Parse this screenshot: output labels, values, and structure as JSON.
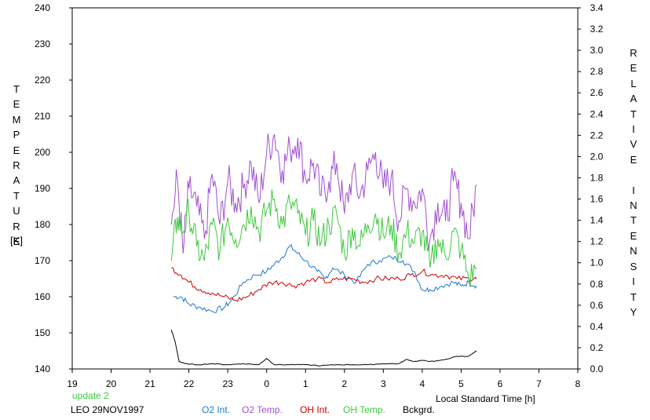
{
  "chart_data": {
    "type": "line",
    "y_left_label_letters": [
      "T",
      "E",
      "M",
      "P",
      "E",
      "R",
      "A",
      "T",
      "U",
      "R",
      "E"
    ],
    "y_left_unit": "[K]",
    "y_right_label_letters": [
      "R",
      "E",
      "L",
      "A",
      "T",
      "I",
      "V",
      "E",
      "",
      "I",
      "N",
      "T",
      "E",
      "N",
      "S",
      "I",
      "T",
      "Y"
    ],
    "xlabel": "Local Standard Time [h]",
    "x_ticks": [
      "19",
      "20",
      "21",
      "22",
      "23",
      "0",
      "1",
      "2",
      "3",
      "4",
      "5",
      "6",
      "7",
      "8"
    ],
    "xlim": [
      19,
      32
    ],
    "y_left_ticks": [
      "140",
      "150",
      "160",
      "170",
      "180",
      "190",
      "200",
      "210",
      "220",
      "230",
      "240"
    ],
    "ylim_left": [
      140,
      240
    ],
    "y_right_ticks": [
      "0.0",
      "0.2",
      "0.4",
      "0.6",
      "0.8",
      "1.0",
      "1.2",
      "1.4",
      "1.6",
      "1.8",
      "2.0",
      "2.2",
      "2.4",
      "2.6",
      "2.8",
      "3.0",
      "3.2",
      "3.4"
    ],
    "ylim_right": [
      0,
      3.4
    ],
    "status": "update 2",
    "site_date": "LEO 29NOV1997",
    "series": [
      {
        "name": "O2 Int.",
        "color": "#1e78d4",
        "axis": "left",
        "x": [
          21.6,
          21.8,
          22.0,
          22.3,
          22.6,
          22.9,
          23.1,
          23.4,
          23.7,
          24.0,
          24.2,
          24.4,
          24.6,
          24.8,
          25.0,
          25.3,
          25.5,
          25.7,
          26.0,
          26.3,
          26.6,
          26.9,
          27.2,
          27.5,
          27.8,
          28.0,
          28.2,
          28.5,
          28.8,
          29.0,
          29.2,
          29.4
        ],
        "y": [
          160,
          160,
          158,
          157,
          156,
          157,
          159,
          164,
          166,
          167,
          169,
          171,
          174,
          172,
          170,
          167,
          165,
          168,
          166,
          164,
          169,
          170,
          171,
          170,
          167,
          162,
          162,
          163,
          164,
          163,
          164,
          163
        ]
      },
      {
        "name": "O2 Temp.",
        "color": "#a050d0",
        "axis": "left",
        "x": [
          21.55,
          21.7,
          21.85,
          22.0,
          22.2,
          22.4,
          22.6,
          22.8,
          23.0,
          23.2,
          23.4,
          23.6,
          23.8,
          24.0,
          24.2,
          24.4,
          24.6,
          24.8,
          25.0,
          25.2,
          25.4,
          25.6,
          25.8,
          26.0,
          26.2,
          26.4,
          26.6,
          26.8,
          27.0,
          27.2,
          27.4,
          27.6,
          27.8,
          28.0,
          28.2,
          28.4,
          28.6,
          28.8,
          29.0,
          29.2,
          29.4
        ],
        "y": [
          180,
          193,
          172,
          190,
          185,
          176,
          194,
          180,
          192,
          186,
          190,
          197,
          186,
          200,
          205,
          195,
          201,
          204,
          193,
          197,
          188,
          192,
          197,
          183,
          194,
          188,
          195,
          200,
          190,
          193,
          181,
          190,
          186,
          190,
          176,
          186,
          181,
          192,
          186,
          176,
          191
        ]
      },
      {
        "name": "OH Int.",
        "color": "#cc0000",
        "axis": "left",
        "x": [
          21.55,
          21.8,
          22.0,
          22.3,
          22.6,
          22.9,
          23.2,
          23.5,
          23.8,
          24.1,
          24.4,
          24.7,
          25.0,
          25.3,
          25.6,
          25.9,
          26.2,
          26.5,
          26.8,
          27.1,
          27.4,
          27.7,
          28.0,
          28.3,
          28.6,
          28.9,
          29.2,
          29.4
        ],
        "y": [
          168,
          166,
          164,
          162,
          161,
          160,
          159,
          160,
          162,
          164,
          164,
          163,
          164,
          165,
          164,
          165,
          165,
          164,
          165,
          165,
          165,
          166,
          167,
          166,
          166,
          165,
          165,
          165
        ]
      },
      {
        "name": "OH Temp.",
        "color": "#40c840",
        "axis": "left",
        "x": [
          21.55,
          21.7,
          21.85,
          22.0,
          22.2,
          22.4,
          22.6,
          22.8,
          23.0,
          23.2,
          23.4,
          23.6,
          23.8,
          24.0,
          24.2,
          24.4,
          24.6,
          24.8,
          25.0,
          25.2,
          25.4,
          25.6,
          25.8,
          26.0,
          26.2,
          26.4,
          26.6,
          26.8,
          27.0,
          27.2,
          27.4,
          27.6,
          27.8,
          28.0,
          28.2,
          28.4,
          28.6,
          28.8,
          29.0,
          29.2,
          29.4
        ],
        "y": [
          170,
          182,
          178,
          184,
          174,
          170,
          180,
          173,
          182,
          176,
          180,
          185,
          178,
          184,
          187,
          180,
          186,
          183,
          177,
          181,
          175,
          180,
          183,
          172,
          179,
          174,
          180,
          183,
          177,
          180,
          172,
          178,
          175,
          178,
          168,
          176,
          171,
          178,
          173,
          165,
          168
        ]
      },
      {
        "name": "Bckgrd.",
        "color": "#000000",
        "axis": "right",
        "x": [
          21.55,
          21.65,
          21.75,
          21.9,
          22.2,
          22.6,
          23.0,
          23.4,
          23.8,
          24.0,
          24.2,
          24.6,
          25.0,
          25.4,
          25.8,
          26.2,
          26.6,
          27.0,
          27.4,
          27.6,
          27.8,
          28.0,
          28.3,
          28.6,
          28.9,
          29.2,
          29.4
        ],
        "y": [
          0.37,
          0.25,
          0.07,
          0.05,
          0.04,
          0.05,
          0.04,
          0.05,
          0.04,
          0.1,
          0.04,
          0.04,
          0.04,
          0.03,
          0.04,
          0.04,
          0.04,
          0.05,
          0.05,
          0.09,
          0.07,
          0.08,
          0.07,
          0.09,
          0.12,
          0.12,
          0.17
        ]
      }
    ]
  }
}
